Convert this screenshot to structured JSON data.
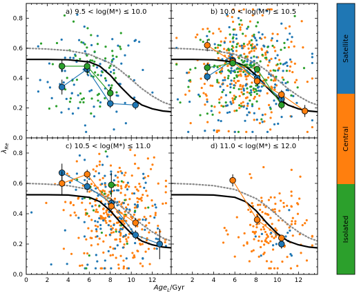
{
  "chart_data": {
    "type": "scatter",
    "xlabel": "Age_L/Gyr",
    "ylabel": "λ_Re",
    "xlim": [
      0,
      13.8
    ],
    "ylim": [
      0,
      0.9
    ],
    "xticks": [
      0,
      2,
      4,
      6,
      8,
      10,
      12
    ],
    "yticks": [
      0.0,
      0.2,
      0.4,
      0.6,
      0.8
    ],
    "colors": {
      "Satellite": "#1f77b4",
      "Central": "#ff7f0e",
      "Isolated": "#2ca02c"
    },
    "colorbar": {
      "labels": [
        "Isolated",
        "Central",
        "Satellite"
      ],
      "placement": "right"
    },
    "panels": [
      {
        "id": "a",
        "label": "a) 9.5 < log(M*) ≤ 10.0",
        "binned": [
          {
            "class": "Satellite",
            "x": [
              3.4,
              5.8,
              8.0,
              10.4
            ],
            "y": [
              0.34,
              0.46,
              0.23,
              0.22
            ],
            "err": [
              0.05,
              0.04,
              0.03,
              0.03
            ]
          },
          {
            "class": "Isolated",
            "x": [
              3.4,
              5.8,
              8.0
            ],
            "y": [
              0.48,
              0.48,
              0.3
            ],
            "err": [
              0.04,
              0.04,
              0.04
            ]
          }
        ]
      },
      {
        "id": "b",
        "label": "b) 10.0 < log(M*) ≤ 10.5",
        "binned": [
          {
            "class": "Satellite",
            "x": [
              3.4,
              5.8,
              8.1,
              10.4
            ],
            "y": [
              0.41,
              0.52,
              0.4,
              0.26
            ],
            "err": [
              0.03,
              0.02,
              0.02,
              0.03
            ]
          },
          {
            "class": "Central",
            "x": [
              3.4,
              5.8,
              8.1,
              10.4,
              12.6
            ],
            "y": [
              0.62,
              0.51,
              0.38,
              0.29,
              0.18
            ],
            "err": [
              0.04,
              0.03,
              0.03,
              0.03,
              0.04
            ]
          },
          {
            "class": "Isolated",
            "x": [
              3.4,
              5.8,
              8.1,
              10.4
            ],
            "y": [
              0.47,
              0.5,
              0.46,
              0.22
            ],
            "err": [
              0.03,
              0.02,
              0.02,
              0.03
            ]
          }
        ]
      },
      {
        "id": "c",
        "label": "c) 10.5 < log(M*) ≤ 11.0",
        "binned": [
          {
            "class": "Satellite",
            "x": [
              3.4,
              5.8,
              8.1,
              10.4,
              12.7
            ],
            "y": [
              0.67,
              0.58,
              0.47,
              0.26,
              0.2
            ],
            "err": [
              0.06,
              0.04,
              0.03,
              0.03,
              0.1
            ]
          },
          {
            "class": "Central",
            "x": [
              3.4,
              5.8,
              8.1,
              10.4
            ],
            "y": [
              0.6,
              0.66,
              0.45,
              0.34
            ],
            "err": [
              0.08,
              0.03,
              0.03,
              0.03
            ]
          },
          {
            "class": "Isolated",
            "x": [
              8.1
            ],
            "y": [
              0.59
            ],
            "err": [
              0.08
            ]
          }
        ]
      },
      {
        "id": "d",
        "label": "d) 11.0 < log(M*) ≤ 12.0",
        "binned": [
          {
            "class": "Satellite",
            "x": [
              10.4
            ],
            "y": [
              0.2
            ],
            "err": [
              0.03
            ]
          },
          {
            "class": "Central",
            "x": [
              5.8,
              8.1,
              10.4
            ],
            "y": [
              0.62,
              0.36,
              0.24
            ],
            "err": [
              0.04,
              0.03,
              0.02
            ]
          }
        ]
      }
    ],
    "model_curves": [
      {
        "style": "solid",
        "x": [
          0,
          2,
          4,
          6,
          7,
          8,
          9,
          10,
          11,
          12,
          13,
          13.8
        ],
        "y": [
          0.525,
          0.525,
          0.523,
          0.508,
          0.48,
          0.42,
          0.34,
          0.27,
          0.22,
          0.195,
          0.18,
          0.175
        ]
      },
      {
        "style": "dotted",
        "x": [
          0,
          2,
          4,
          6,
          8,
          9,
          10,
          11,
          12,
          13,
          13.8
        ],
        "y": [
          0.6,
          0.595,
          0.585,
          0.56,
          0.5,
          0.45,
          0.39,
          0.33,
          0.28,
          0.24,
          0.22
        ]
      }
    ]
  }
}
